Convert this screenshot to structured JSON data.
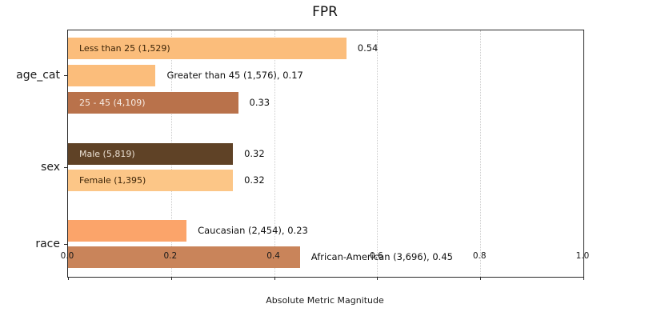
{
  "chart_data": {
    "type": "bar",
    "orientation": "horizontal",
    "title": "FPR",
    "xlabel": "Absolute Metric Magnitude",
    "xlim": [
      0,
      1
    ],
    "xticks": [
      "0.0",
      "0.2",
      "0.4",
      "0.6",
      "0.8",
      "1.0"
    ],
    "grid": "vertical dotted gridlines at interior ticks",
    "legend": "none",
    "groups": [
      {
        "name": "age_cat",
        "bars": [
          {
            "label": "Less than 25 (1,529)",
            "count": "1,529",
            "value": 0.54,
            "color": "#fbbd7b",
            "label_placement": "inside",
            "label_color": "#3d2508",
            "annotation": "0.54"
          },
          {
            "label": "Greater than 45 (1,576)",
            "count": "1,576",
            "value": 0.17,
            "color": "#fbbd7b",
            "label_placement": "outside",
            "label_color": "#111111",
            "annotation": "Greater than 45 (1,576), 0.17"
          },
          {
            "label": "25 - 45 (4,109)",
            "count": "4,109",
            "value": 0.33,
            "color": "#b9724b",
            "label_placement": "inside",
            "label_color": "#f7ece4",
            "annotation": "0.33"
          }
        ]
      },
      {
        "name": "sex",
        "bars": [
          {
            "label": "Male (5,819)",
            "count": "5,819",
            "value": 0.32,
            "color": "#5f4226",
            "label_placement": "inside",
            "label_color": "#eadfd2",
            "annotation": "0.32"
          },
          {
            "label": "Female (1,395)",
            "count": "1,395",
            "value": 0.32,
            "color": "#fcc687",
            "label_placement": "inside",
            "label_color": "#3d2508",
            "annotation": "0.32"
          }
        ]
      },
      {
        "name": "race",
        "bars": [
          {
            "label": "Caucasian (2,454)",
            "count": "2,454",
            "value": 0.23,
            "color": "#fba46a",
            "label_placement": "outside",
            "label_color": "#111111",
            "annotation": "Caucasian (2,454), 0.23"
          },
          {
            "label": "African-American (3,696)",
            "count": "3,696",
            "value": 0.45,
            "color": "#c9845a",
            "label_placement": "outside",
            "label_color": "#111111",
            "annotation": "African-American (3,696), 0.45"
          }
        ]
      }
    ]
  }
}
